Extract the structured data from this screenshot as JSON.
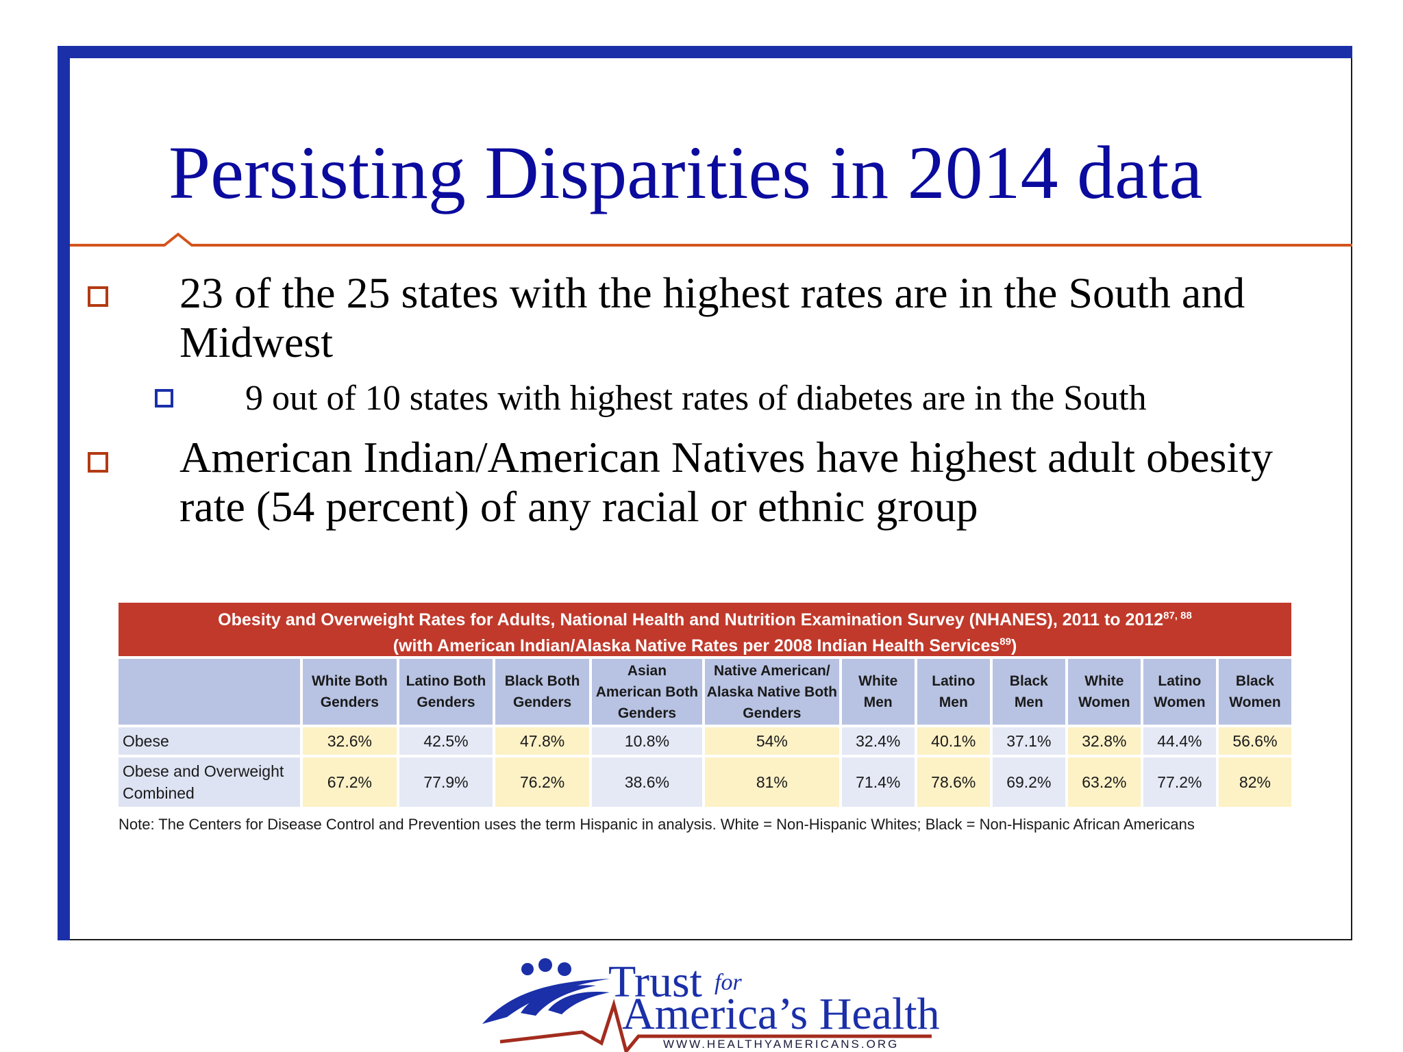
{
  "slide": {
    "title": "Persisting Disparities in 2014 data",
    "bullets": [
      {
        "level": 1,
        "text": "23 of the 25 states with the highest rates are in the South and Midwest"
      },
      {
        "level": 2,
        "text": "9 out of 10 states with highest rates of diabetes are in the South"
      },
      {
        "level": 1,
        "text": "American Indian/American Natives have highest adult obesity rate (54 percent) of any racial or ethnic group"
      }
    ]
  },
  "table": {
    "title_line1": "Obesity and Overweight Rates for Adults, National Health and Nutrition Examination Survey (NHANES), 2011 to 2012",
    "title_line1_sup": "87, 88",
    "title_line2": "(with American Indian/Alaska Native Rates per 2008 Indian Health Services",
    "title_line2_sup": "89",
    "title_line2_end": ")",
    "columns": [
      "White Both Genders",
      "Latino Both Genders",
      "Black Both Genders",
      "Asian American Both Genders",
      "Native American/ Alaska Native Both Genders",
      "White Men",
      "Latino Men",
      "Black Men",
      "White Women",
      "Latino Women",
      "Black Women"
    ],
    "rows": [
      {
        "label": "Obese",
        "values": [
          "32.6%",
          "42.5%",
          "47.8%",
          "10.8%",
          "54%",
          "32.4%",
          "40.1%",
          "37.1%",
          "32.8%",
          "44.4%",
          "56.6%"
        ]
      },
      {
        "label": "Obese and Overweight Combined",
        "values": [
          "67.2%",
          "77.9%",
          "76.2%",
          "38.6%",
          "81%",
          "71.4%",
          "78.6%",
          "69.2%",
          "63.2%",
          "77.2%",
          "82%"
        ]
      }
    ],
    "note": "Note: The Centers for Disease Control and Prevention uses the term Hispanic in analysis.  White = Non-Hispanic Whites; Black = Non-Hispanic African Americans"
  },
  "logo": {
    "trust": "Trust",
    "for": "for",
    "americas_health": "America’s Health",
    "url": "WWW.HEALTHYAMERICANS.ORG"
  },
  "colors": {
    "title": "#0b0b9e",
    "frame_accent": "#1a2fa8",
    "rule": "#d2541c",
    "bullet_level1": "#b33a12",
    "bullet_level2": "#1a2fa8",
    "table_banner": "#c0392b",
    "header_cell": "#b8c3e3",
    "highlight_cell": "#fdf1c6"
  }
}
